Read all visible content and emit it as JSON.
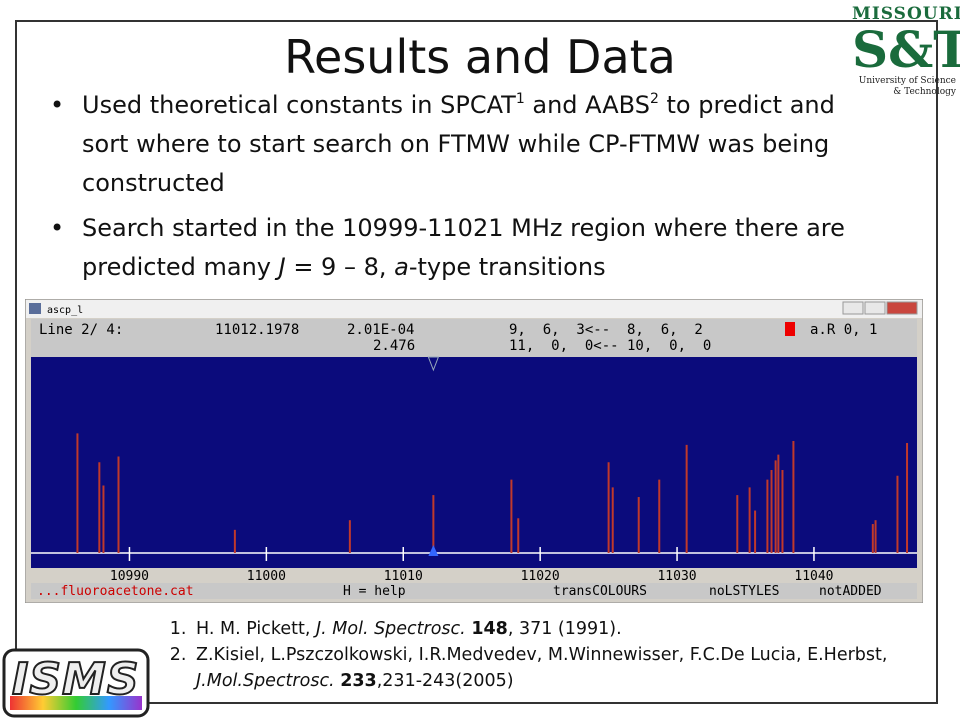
{
  "slide": {
    "title": "Results and Data",
    "bullets": [
      {
        "parts": [
          "Used theoretical constants in SPCAT",
          "1",
          " and AABS",
          "2",
          " to predict and sort where to start search on FTMW while CP-FTMW was being constructed"
        ]
      },
      {
        "parts": [
          "Search started in the 10999-11021 MHz region where there are predicted many ",
          "J",
          " = 9 – 8, ",
          "a",
          "-type transitions"
        ]
      }
    ],
    "references": [
      {
        "parts": [
          "H. M. Pickett, ",
          "J. Mol. Spectrosc.",
          " ",
          "148",
          ", 371 (1991)."
        ]
      },
      {
        "parts": [
          "Z.Kisiel, L.Pszczolkowski, I.R.Medvedev, M.Winnewisser, F.C.De Lucia, E.Herbst, ",
          "J.Mol.Spectrosc.",
          " ",
          "233",
          ",231-243(2005)"
        ]
      }
    ],
    "logo_top": {
      "line1": "MISSOURI",
      "line2": "S&T",
      "line3": "University of Science & Technology"
    },
    "logo_bottom": "ISMS"
  },
  "window": {
    "title": "ascp_l",
    "header_row1": [
      "Line  2/ 4:",
      "11012.1978",
      "2.01E-04",
      "9,  6,  3<--  8,  6,  2",
      "a.R 0, 1"
    ],
    "header_row2": [
      "2.476",
      "11,  0,  0<-- 10,  0,  0"
    ],
    "footer": [
      "...fluoroacetone.cat",
      "H = help",
      "transCOLOURS",
      "noLSTYLES",
      "notADDED"
    ]
  },
  "chart_data": {
    "type": "stick",
    "x": [
      10986.2,
      10987.8,
      10988.1,
      10989.2,
      10997.7,
      11006.1,
      11012.2,
      11017.9,
      11018.4,
      11025.0,
      11025.3,
      11027.2,
      11028.7,
      11030.7,
      11034.4,
      11035.3,
      11035.7,
      11036.6,
      11036.9,
      11037.2,
      11037.4,
      11037.7,
      11038.5,
      11044.3,
      11044.5,
      11046.1,
      11046.8
    ],
    "values": [
      62,
      47,
      35,
      50,
      12,
      17,
      30,
      38,
      18,
      47,
      34,
      29,
      38,
      56,
      30,
      34,
      22,
      38,
      43,
      48,
      51,
      43,
      58,
      15,
      17,
      40,
      57
    ],
    "color": "#c0392b",
    "xlim": [
      10983.1,
      11047.6
    ],
    "xticks": [
      10990,
      11000,
      11010,
      11020,
      11030,
      11040
    ],
    "ylim": [
      0,
      100
    ]
  }
}
